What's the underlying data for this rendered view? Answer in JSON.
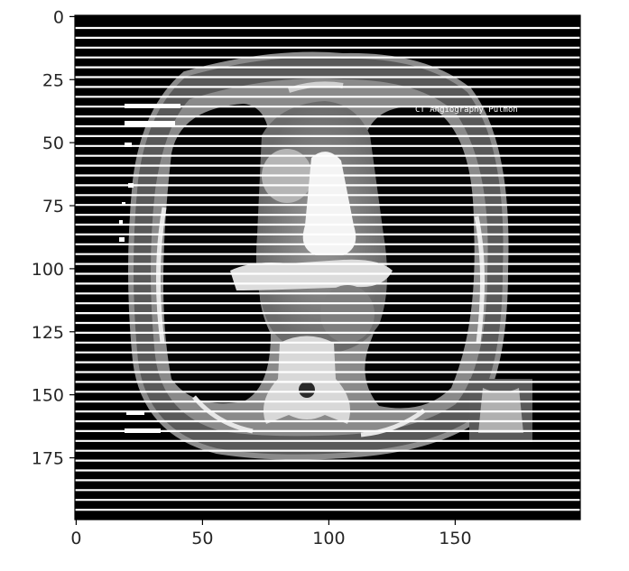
{
  "figure": {
    "kind": "image-plot",
    "image_subject": "axial CT slice of chest (mediastinum window) with horizontal line artifacts",
    "axes": {
      "x_ticks": [
        "0",
        "50",
        "100",
        "150"
      ],
      "y_ticks": [
        "0",
        "25",
        "50",
        "75",
        "100",
        "125",
        "150",
        "175"
      ],
      "x_range": [
        0,
        199
      ],
      "y_range": [
        0,
        199
      ],
      "y_inverted": true
    },
    "overlay_text": {
      "top_right": "CT Angiography Pulmon"
    },
    "colors": {
      "background": "#000000",
      "tissue": "#7a7a7a",
      "bone": "#f2f2f2",
      "artifact_lines": "#ffffff"
    }
  }
}
